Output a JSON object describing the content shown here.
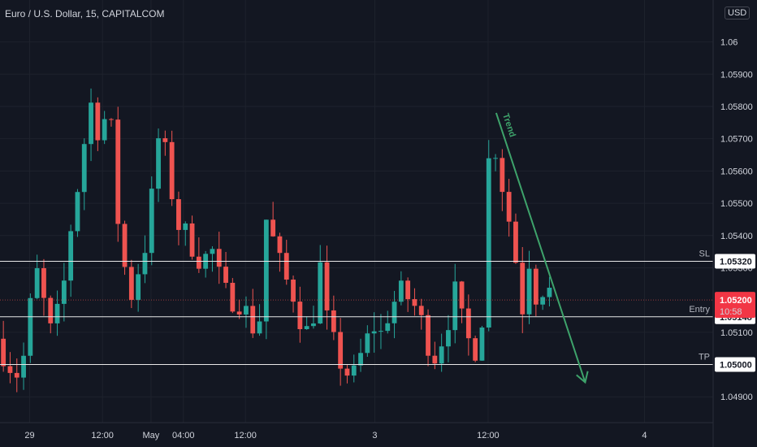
{
  "header": {
    "title": "Euro / U.S. Dollar, 15, CAPITALCOM",
    "currency": "USD"
  },
  "chart_data": {
    "type": "candlestick",
    "title": "Euro / U.S. Dollar, 15, CAPITALCOM",
    "ylim": [
      1.0482,
      1.0613
    ],
    "grid": true,
    "price_ticks": [
      "1.06",
      "1.05900",
      "1.05800",
      "1.05700",
      "1.05600",
      "1.05500",
      "1.05400",
      "1.05300",
      "1.05100",
      "1.04900"
    ],
    "price_tick_values": [
      1.06,
      1.059,
      1.058,
      1.057,
      1.056,
      1.055,
      1.054,
      1.053,
      1.051,
      1.049
    ],
    "time_ticks": [
      {
        "label": "29",
        "slot": 0.11
      },
      {
        "label": "12:00",
        "slot": 0.38
      },
      {
        "label": "May",
        "slot": 0.56
      },
      {
        "label": "04:00",
        "slot": 0.68
      },
      {
        "label": "12:00",
        "slot": 0.91
      },
      {
        "label": "3",
        "slot": 1.39
      },
      {
        "label": "12:00",
        "slot": 1.81
      },
      {
        "label": "4",
        "slot": 2.39
      }
    ],
    "levels": [
      {
        "name": "SL",
        "price": 1.0532,
        "label": "1.05320"
      },
      {
        "name": "Entry",
        "price": 1.05148,
        "label": "1.05148"
      },
      {
        "name": "TP",
        "price": 1.05,
        "label": "1.05000"
      }
    ],
    "current": {
      "price": 1.052,
      "label": "1.05200",
      "countdown": "10:58"
    },
    "trend_annotation": {
      "label": "Trend",
      "from": {
        "slot": 1.84,
        "price": 1.0578
      },
      "to": {
        "slot": 2.17,
        "price": 1.04945
      }
    },
    "anchors": [
      [
        0.0,
        1.0508
      ],
      [
        0.05,
        1.05
      ],
      [
        0.08,
        1.0497
      ],
      [
        0.11,
        1.0505
      ],
      [
        0.13,
        1.0522
      ],
      [
        0.15,
        1.0528
      ],
      [
        0.2,
        1.051
      ],
      [
        0.24,
        1.0518
      ],
      [
        0.27,
        1.054
      ],
      [
        0.32,
        1.0565
      ],
      [
        0.345,
        1.0585
      ],
      [
        0.36,
        1.0572
      ],
      [
        0.42,
        1.0578
      ],
      [
        0.44,
        1.0555
      ],
      [
        0.46,
        1.0535
      ],
      [
        0.5,
        1.0522
      ],
      [
        0.56,
        1.054
      ],
      [
        0.6,
        1.057
      ],
      [
        0.64,
        1.0562
      ],
      [
        0.66,
        1.0545
      ],
      [
        0.72,
        1.0538
      ],
      [
        0.76,
        1.0532
      ],
      [
        0.8,
        1.0535
      ],
      [
        0.84,
        1.0522
      ],
      [
        0.9,
        1.052
      ],
      [
        0.95,
        1.0512
      ],
      [
        0.98,
        1.0515
      ],
      [
        1.0,
        1.0545
      ],
      [
        1.02,
        1.054
      ],
      [
        1.06,
        1.0528
      ],
      [
        1.1,
        1.0522
      ],
      [
        1.12,
        1.0516
      ],
      [
        1.16,
        1.0508
      ],
      [
        1.2,
        1.053
      ],
      [
        1.23,
        1.051
      ],
      [
        1.28,
        1.05
      ],
      [
        1.32,
        1.0495
      ],
      [
        1.36,
        1.0505
      ],
      [
        1.4,
        1.0512
      ],
      [
        1.42,
        1.0508
      ],
      [
        1.46,
        1.0518
      ],
      [
        1.5,
        1.0522
      ],
      [
        1.54,
        1.052
      ],
      [
        1.58,
        1.0512
      ],
      [
        1.62,
        1.0502
      ],
      [
        1.66,
        1.051
      ],
      [
        1.7,
        1.0522
      ],
      [
        1.74,
        1.0508
      ],
      [
        1.78,
        1.0505
      ],
      [
        1.8,
        1.0515
      ],
      [
        1.82,
        1.056
      ],
      [
        1.84,
        1.0572
      ],
      [
        1.87,
        1.0558
      ],
      [
        1.9,
        1.0545
      ],
      [
        1.93,
        1.053
      ],
      [
        1.95,
        1.0518
      ],
      [
        1.97,
        1.0535
      ],
      [
        2.0,
        1.0522
      ],
      [
        2.04,
        1.0525
      ],
      [
        2.06,
        1.052
      ]
    ],
    "candles_per_slot": 40
  }
}
